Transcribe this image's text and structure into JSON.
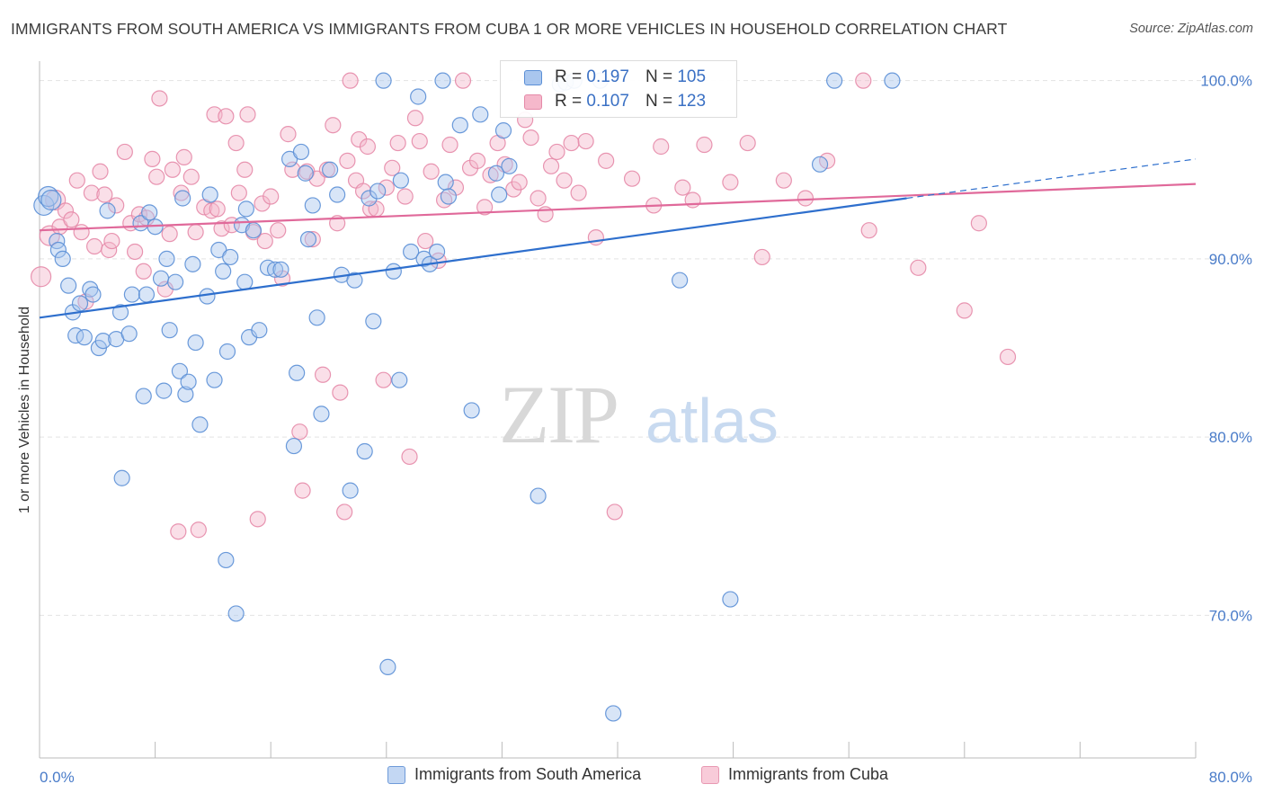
{
  "header": {
    "title": "IMMIGRANTS FROM SOUTH AMERICA VS IMMIGRANTS FROM CUBA 1 OR MORE VEHICLES IN HOUSEHOLD CORRELATION CHART",
    "source": "Source: ZipAtlas.com"
  },
  "watermark": {
    "zip": "ZIP",
    "atlas": "atlas"
  },
  "legend": {
    "rows": [
      {
        "r_label": "R =",
        "r_value": "0.197",
        "n_label": "N =",
        "n_value": "105"
      },
      {
        "r_label": "R =",
        "r_value": "0.107",
        "n_label": "N =",
        "n_value": "123"
      }
    ]
  },
  "colors": {
    "south_america_fill": "#a9c6ee",
    "south_america_stroke": "#5b8fd6",
    "south_america_line": "#2e6fcd",
    "cuba_fill": "#f5b8cb",
    "cuba_stroke": "#e58aa8",
    "cuba_line": "#e0699a",
    "tick_label": "#4a7cc9",
    "grid": "#e3e3e3"
  },
  "chart_data": {
    "type": "scatter",
    "title": "IMMIGRANTS FROM SOUTH AMERICA VS IMMIGRANTS FROM CUBA 1 OR MORE VEHICLES IN HOUSEHOLD CORRELATION CHART",
    "xlabel": "",
    "ylabel": "1 or more Vehicles in Household",
    "xlim": [
      0,
      80
    ],
    "ylim": [
      62,
      102
    ],
    "x_tick_labels": [
      "0.0%",
      "80.0%"
    ],
    "y_ticks": [
      70,
      80,
      90,
      100
    ],
    "y_tick_labels": [
      "70.0%",
      "80.0%",
      "90.0%",
      "100.0%"
    ],
    "grid": true,
    "legend_placement": "top-center",
    "series": [
      {
        "name": "Immigrants from South America",
        "r": 0.197,
        "n": 105,
        "trend": {
          "x": [
            0,
            60
          ],
          "y": [
            86.7,
            93.4
          ],
          "dashed_to": [
            80,
            95.6
          ]
        },
        "points": [
          [
            0.3,
            93.0
          ],
          [
            0.6,
            93.5
          ],
          [
            0.8,
            93.3
          ],
          [
            1.2,
            91.0
          ],
          [
            1.3,
            90.5
          ],
          [
            1.6,
            90.0
          ],
          [
            2.0,
            88.5
          ],
          [
            2.3,
            87.0
          ],
          [
            2.5,
            85.7
          ],
          [
            2.8,
            87.5
          ],
          [
            3.1,
            85.6
          ],
          [
            3.5,
            88.3
          ],
          [
            3.7,
            88.0
          ],
          [
            4.1,
            85.0
          ],
          [
            4.4,
            85.4
          ],
          [
            4.7,
            92.7
          ],
          [
            5.3,
            85.5
          ],
          [
            5.6,
            87.0
          ],
          [
            6.2,
            85.8
          ],
          [
            6.4,
            88.0
          ],
          [
            5.7,
            77.7
          ],
          [
            7.0,
            92.0
          ],
          [
            7.2,
            82.3
          ],
          [
            7.4,
            88.0
          ],
          [
            7.6,
            92.6
          ],
          [
            8.0,
            91.8
          ],
          [
            8.4,
            88.9
          ],
          [
            8.6,
            82.6
          ],
          [
            8.8,
            90.0
          ],
          [
            9.0,
            86.0
          ],
          [
            9.4,
            88.7
          ],
          [
            9.7,
            83.7
          ],
          [
            9.9,
            93.4
          ],
          [
            10.1,
            82.4
          ],
          [
            10.3,
            83.1
          ],
          [
            10.6,
            89.7
          ],
          [
            10.8,
            85.3
          ],
          [
            11.1,
            80.7
          ],
          [
            11.6,
            87.9
          ],
          [
            11.8,
            93.6
          ],
          [
            12.1,
            83.2
          ],
          [
            12.4,
            90.5
          ],
          [
            12.7,
            89.3
          ],
          [
            13.0,
            84.8
          ],
          [
            13.2,
            90.1
          ],
          [
            13.6,
            70.1
          ],
          [
            14.0,
            91.9
          ],
          [
            14.2,
            88.7
          ],
          [
            14.3,
            92.8
          ],
          [
            14.5,
            85.6
          ],
          [
            14.8,
            91.6
          ],
          [
            15.2,
            86.0
          ],
          [
            15.8,
            89.5
          ],
          [
            16.3,
            89.4
          ],
          [
            16.7,
            89.4
          ],
          [
            17.3,
            95.6
          ],
          [
            17.6,
            79.5
          ],
          [
            17.8,
            83.6
          ],
          [
            18.1,
            96.0
          ],
          [
            18.4,
            94.8
          ],
          [
            18.9,
            93.0
          ],
          [
            19.2,
            86.7
          ],
          [
            19.5,
            81.3
          ],
          [
            20.1,
            95.0
          ],
          [
            20.6,
            93.6
          ],
          [
            20.9,
            89.1
          ],
          [
            21.5,
            77.0
          ],
          [
            21.8,
            88.8
          ],
          [
            22.5,
            79.2
          ],
          [
            22.8,
            93.4
          ],
          [
            23.1,
            86.5
          ],
          [
            23.4,
            93.8
          ],
          [
            23.8,
            100.0
          ],
          [
            24.5,
            89.3
          ],
          [
            24.9,
            83.2
          ],
          [
            25.0,
            94.4
          ],
          [
            25.7,
            90.4
          ],
          [
            26.2,
            99.1
          ],
          [
            26.6,
            90.0
          ],
          [
            27.0,
            89.7
          ],
          [
            27.5,
            90.4
          ],
          [
            27.9,
            100.0
          ],
          [
            28.1,
            94.3
          ],
          [
            28.3,
            93.5
          ],
          [
            29.1,
            97.5
          ],
          [
            29.9,
            81.5
          ],
          [
            30.5,
            98.1
          ],
          [
            31.6,
            94.8
          ],
          [
            31.8,
            93.6
          ],
          [
            32.1,
            97.2
          ],
          [
            32.5,
            95.2
          ],
          [
            34.5,
            76.7
          ],
          [
            36.0,
            99.8
          ],
          [
            36.4,
            99.9
          ],
          [
            37.0,
            100.0
          ],
          [
            38.8,
            100.0
          ],
          [
            39.7,
            64.5
          ],
          [
            44.3,
            88.8
          ],
          [
            47.8,
            70.9
          ],
          [
            54.0,
            95.3
          ],
          [
            55.0,
            100.0
          ],
          [
            59.0,
            100.0
          ],
          [
            12.9,
            73.1
          ],
          [
            18.6,
            91.1
          ],
          [
            24.1,
            67.1
          ]
        ]
      },
      {
        "name": "Immigrants from Cuba",
        "r": 0.107,
        "n": 123,
        "trend": {
          "x": [
            0,
            80
          ],
          "y": [
            91.6,
            94.2
          ]
        },
        "points": [
          [
            0.1,
            89.0
          ],
          [
            0.7,
            91.3
          ],
          [
            1.1,
            93.3
          ],
          [
            1.4,
            91.8
          ],
          [
            1.8,
            92.7
          ],
          [
            2.2,
            92.2
          ],
          [
            2.6,
            94.4
          ],
          [
            2.9,
            91.5
          ],
          [
            3.2,
            87.6
          ],
          [
            3.6,
            93.7
          ],
          [
            3.8,
            90.7
          ],
          [
            4.2,
            94.9
          ],
          [
            4.5,
            93.6
          ],
          [
            4.8,
            90.5
          ],
          [
            5.0,
            91.0
          ],
          [
            5.3,
            93.0
          ],
          [
            5.9,
            96.0
          ],
          [
            6.3,
            92.0
          ],
          [
            6.6,
            90.4
          ],
          [
            6.9,
            92.5
          ],
          [
            7.2,
            89.3
          ],
          [
            7.4,
            92.3
          ],
          [
            7.8,
            95.6
          ],
          [
            8.1,
            94.6
          ],
          [
            8.3,
            99.0
          ],
          [
            8.7,
            88.3
          ],
          [
            9.0,
            91.4
          ],
          [
            9.2,
            95.0
          ],
          [
            9.6,
            74.7
          ],
          [
            9.8,
            93.7
          ],
          [
            10.0,
            95.7
          ],
          [
            10.5,
            94.6
          ],
          [
            10.8,
            91.5
          ],
          [
            11.0,
            74.8
          ],
          [
            11.4,
            92.9
          ],
          [
            11.9,
            92.7
          ],
          [
            12.1,
            98.1
          ],
          [
            12.3,
            92.8
          ],
          [
            12.6,
            91.7
          ],
          [
            12.9,
            98.0
          ],
          [
            13.3,
            91.9
          ],
          [
            13.6,
            96.5
          ],
          [
            13.8,
            93.7
          ],
          [
            14.2,
            95.0
          ],
          [
            14.4,
            98.1
          ],
          [
            14.8,
            91.5
          ],
          [
            15.1,
            75.4
          ],
          [
            15.4,
            93.1
          ],
          [
            15.6,
            91.0
          ],
          [
            16.0,
            93.5
          ],
          [
            16.5,
            91.6
          ],
          [
            16.8,
            88.9
          ],
          [
            17.2,
            97.0
          ],
          [
            17.5,
            95.0
          ],
          [
            18.0,
            80.3
          ],
          [
            18.2,
            77.0
          ],
          [
            18.5,
            94.9
          ],
          [
            18.9,
            91.1
          ],
          [
            19.2,
            94.5
          ],
          [
            19.6,
            83.5
          ],
          [
            19.9,
            95.0
          ],
          [
            20.3,
            97.5
          ],
          [
            20.6,
            92.0
          ],
          [
            20.8,
            82.5
          ],
          [
            21.1,
            75.8
          ],
          [
            21.3,
            95.5
          ],
          [
            21.5,
            100.0
          ],
          [
            21.9,
            94.4
          ],
          [
            22.1,
            96.7
          ],
          [
            22.4,
            93.8
          ],
          [
            22.7,
            96.3
          ],
          [
            22.9,
            92.8
          ],
          [
            23.3,
            92.8
          ],
          [
            23.8,
            83.2
          ],
          [
            24.0,
            94.0
          ],
          [
            24.4,
            95.1
          ],
          [
            24.8,
            96.5
          ],
          [
            25.3,
            93.5
          ],
          [
            25.6,
            78.9
          ],
          [
            26.0,
            97.9
          ],
          [
            26.3,
            96.6
          ],
          [
            26.7,
            91.0
          ],
          [
            27.1,
            94.9
          ],
          [
            27.6,
            89.9
          ],
          [
            28.0,
            93.3
          ],
          [
            28.4,
            96.4
          ],
          [
            28.8,
            94.0
          ],
          [
            29.3,
            100.0
          ],
          [
            29.8,
            95.1
          ],
          [
            30.3,
            95.5
          ],
          [
            30.8,
            92.9
          ],
          [
            31.2,
            94.7
          ],
          [
            31.7,
            96.5
          ],
          [
            32.2,
            95.3
          ],
          [
            32.8,
            93.9
          ],
          [
            33.2,
            94.3
          ],
          [
            33.6,
            97.8
          ],
          [
            34.0,
            96.8
          ],
          [
            34.5,
            93.4
          ],
          [
            35.0,
            92.5
          ],
          [
            35.4,
            95.2
          ],
          [
            35.8,
            96.0
          ],
          [
            36.3,
            94.4
          ],
          [
            36.8,
            96.5
          ],
          [
            37.3,
            93.7
          ],
          [
            37.8,
            96.6
          ],
          [
            38.5,
            91.2
          ],
          [
            39.2,
            95.5
          ],
          [
            39.8,
            75.8
          ],
          [
            41.0,
            94.5
          ],
          [
            42.5,
            93.0
          ],
          [
            43.0,
            96.3
          ],
          [
            44.5,
            94.0
          ],
          [
            45.2,
            93.3
          ],
          [
            46.0,
            96.4
          ],
          [
            47.8,
            94.3
          ],
          [
            49.0,
            96.5
          ],
          [
            50.0,
            90.1
          ],
          [
            51.5,
            94.4
          ],
          [
            53.0,
            93.4
          ],
          [
            54.5,
            95.5
          ],
          [
            57.4,
            91.6
          ],
          [
            60.8,
            89.5
          ],
          [
            64.0,
            87.1
          ],
          [
            65.0,
            92.0
          ],
          [
            67.0,
            84.5
          ],
          [
            57.0,
            100.0
          ]
        ]
      }
    ]
  },
  "bottom_legend": {
    "south_america": "Immigrants from South America",
    "cuba": "Immigrants from Cuba"
  }
}
